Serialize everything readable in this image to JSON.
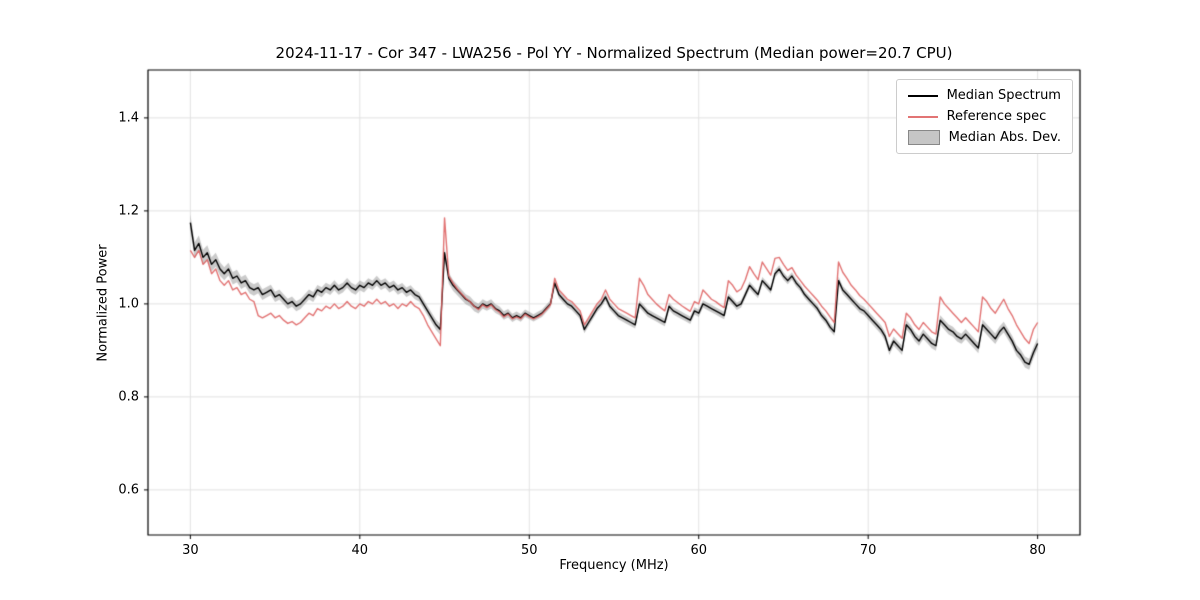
{
  "figure": {
    "background": "#ffffff",
    "axis_color": "#000000",
    "grid_color": "#e3e3e3"
  },
  "chart_data": {
    "type": "line",
    "title": "2024-11-17 - Cor 347 - LWA256 - Pol YY - Normalized Spectrum (Median power=20.7 CPU)",
    "xlabel": "Frequency (MHz)",
    "ylabel": "Normalized Power",
    "xlim": [
      27.5,
      82.5
    ],
    "ylim": [
      0.503,
      1.503
    ],
    "xticks": [
      30,
      40,
      50,
      60,
      70,
      80
    ],
    "yticks": [
      0.6,
      0.8,
      1.0,
      1.2,
      1.4
    ],
    "xtick_labels": [
      "30",
      "40",
      "50",
      "60",
      "70",
      "80"
    ],
    "ytick_labels": [
      "0.6",
      "0.8",
      "1.0",
      "1.2",
      "1.4"
    ],
    "grid": true,
    "legend_position": "upper right",
    "x_start": 30.0,
    "x_step": 0.25,
    "series": [
      {
        "name": "Median Spectrum",
        "color": "#000000",
        "alpha": 1.0,
        "values": [
          1.175,
          1.115,
          1.13,
          1.1,
          1.11,
          1.085,
          1.095,
          1.075,
          1.065,
          1.075,
          1.055,
          1.06,
          1.045,
          1.05,
          1.035,
          1.03,
          1.035,
          1.02,
          1.025,
          1.03,
          1.015,
          1.02,
          1.01,
          1.0,
          1.005,
          0.995,
          1.0,
          1.01,
          1.02,
          1.015,
          1.03,
          1.025,
          1.035,
          1.03,
          1.04,
          1.03,
          1.035,
          1.045,
          1.035,
          1.03,
          1.04,
          1.035,
          1.045,
          1.04,
          1.05,
          1.04,
          1.045,
          1.035,
          1.04,
          1.03,
          1.035,
          1.025,
          1.03,
          1.02,
          1.015,
          1.0,
          0.985,
          0.97,
          0.955,
          0.945,
          1.11,
          1.055,
          1.04,
          1.03,
          1.02,
          1.01,
          1.005,
          0.995,
          0.99,
          1.0,
          0.995,
          1.0,
          0.99,
          0.985,
          0.975,
          0.98,
          0.97,
          0.975,
          0.97,
          0.98,
          0.975,
          0.97,
          0.975,
          0.98,
          0.99,
          1.0,
          1.045,
          1.02,
          1.01,
          1.0,
          0.995,
          0.985,
          0.975,
          0.945,
          0.96,
          0.975,
          0.99,
          1.0,
          1.015,
          0.995,
          0.985,
          0.975,
          0.97,
          0.965,
          0.96,
          0.955,
          1.0,
          0.99,
          0.98,
          0.975,
          0.97,
          0.965,
          0.96,
          0.995,
          0.985,
          0.98,
          0.975,
          0.97,
          0.965,
          0.985,
          0.98,
          1.0,
          0.995,
          0.99,
          0.985,
          0.98,
          0.975,
          1.015,
          1.005,
          0.995,
          1.0,
          1.02,
          1.04,
          1.03,
          1.02,
          1.05,
          1.04,
          1.03,
          1.065,
          1.075,
          1.06,
          1.05,
          1.06,
          1.045,
          1.035,
          1.02,
          1.01,
          1.0,
          0.99,
          0.975,
          0.965,
          0.95,
          0.94,
          1.05,
          1.03,
          1.02,
          1.01,
          1.0,
          0.99,
          0.985,
          0.975,
          0.965,
          0.955,
          0.945,
          0.93,
          0.9,
          0.92,
          0.91,
          0.9,
          0.955,
          0.945,
          0.93,
          0.92,
          0.935,
          0.925,
          0.915,
          0.91,
          0.965,
          0.955,
          0.945,
          0.94,
          0.93,
          0.925,
          0.935,
          0.925,
          0.915,
          0.905,
          0.955,
          0.945,
          0.935,
          0.925,
          0.94,
          0.95,
          0.935,
          0.92,
          0.9,
          0.89,
          0.875,
          0.87,
          0.895,
          0.915
        ]
      },
      {
        "name": "Reference spec",
        "color": "#dd5c5c",
        "alpha": 0.85,
        "values": [
          1.115,
          1.1,
          1.115,
          1.085,
          1.095,
          1.065,
          1.075,
          1.05,
          1.04,
          1.05,
          1.03,
          1.035,
          1.02,
          1.025,
          1.01,
          1.005,
          0.975,
          0.97,
          0.975,
          0.98,
          0.97,
          0.975,
          0.965,
          0.958,
          0.962,
          0.955,
          0.96,
          0.97,
          0.98,
          0.975,
          0.99,
          0.985,
          0.995,
          0.99,
          1.0,
          0.99,
          0.995,
          1.005,
          0.995,
          0.99,
          1.0,
          0.995,
          1.005,
          1.0,
          1.01,
          1.0,
          1.005,
          0.995,
          1.0,
          0.99,
          1.0,
          0.995,
          1.005,
          0.995,
          0.99,
          0.975,
          0.955,
          0.94,
          0.925,
          0.91,
          1.185,
          1.06,
          1.045,
          1.032,
          1.022,
          1.012,
          1.005,
          0.995,
          0.988,
          0.998,
          0.992,
          0.998,
          0.988,
          0.982,
          0.972,
          0.978,
          0.968,
          0.972,
          0.968,
          0.978,
          0.972,
          0.968,
          0.972,
          0.978,
          0.988,
          0.998,
          1.055,
          1.03,
          1.02,
          1.01,
          1.005,
          0.995,
          0.985,
          0.955,
          0.97,
          0.985,
          1.0,
          1.01,
          1.03,
          1.01,
          1.0,
          0.99,
          0.985,
          0.98,
          0.975,
          0.97,
          1.055,
          1.04,
          1.02,
          1.01,
          1.0,
          0.992,
          0.985,
          1.02,
          1.01,
          1.003,
          0.996,
          0.99,
          0.984,
          1.005,
          1.0,
          1.03,
          1.02,
          1.01,
          1.005,
          0.998,
          0.992,
          1.05,
          1.04,
          1.026,
          1.032,
          1.052,
          1.08,
          1.065,
          1.052,
          1.09,
          1.076,
          1.062,
          1.098,
          1.1,
          1.085,
          1.072,
          1.078,
          1.062,
          1.05,
          1.038,
          1.028,
          1.018,
          1.008,
          0.995,
          0.985,
          0.972,
          0.96,
          1.09,
          1.068,
          1.055,
          1.04,
          1.03,
          1.018,
          1.01,
          1.0,
          0.99,
          0.98,
          0.97,
          0.96,
          0.93,
          0.946,
          0.936,
          0.926,
          0.98,
          0.97,
          0.955,
          0.945,
          0.96,
          0.95,
          0.94,
          0.935,
          1.015,
          1.0,
          0.99,
          0.98,
          0.97,
          0.96,
          0.97,
          0.96,
          0.95,
          0.94,
          1.015,
          1.005,
          0.99,
          0.98,
          0.995,
          1.01,
          0.99,
          0.975,
          0.955,
          0.94,
          0.925,
          0.915,
          0.945,
          0.96
        ]
      }
    ],
    "band": {
      "name": "Median Abs. Dev.",
      "color": "#8c8c8c",
      "alpha": 0.45,
      "around_series": 0,
      "halfwidth_x": [
        30,
        32,
        35,
        44,
        45,
        50,
        67,
        72,
        80
      ],
      "halfwidth": [
        0.018,
        0.014,
        0.011,
        0.01,
        0.012,
        0.008,
        0.008,
        0.01,
        0.012
      ]
    }
  }
}
